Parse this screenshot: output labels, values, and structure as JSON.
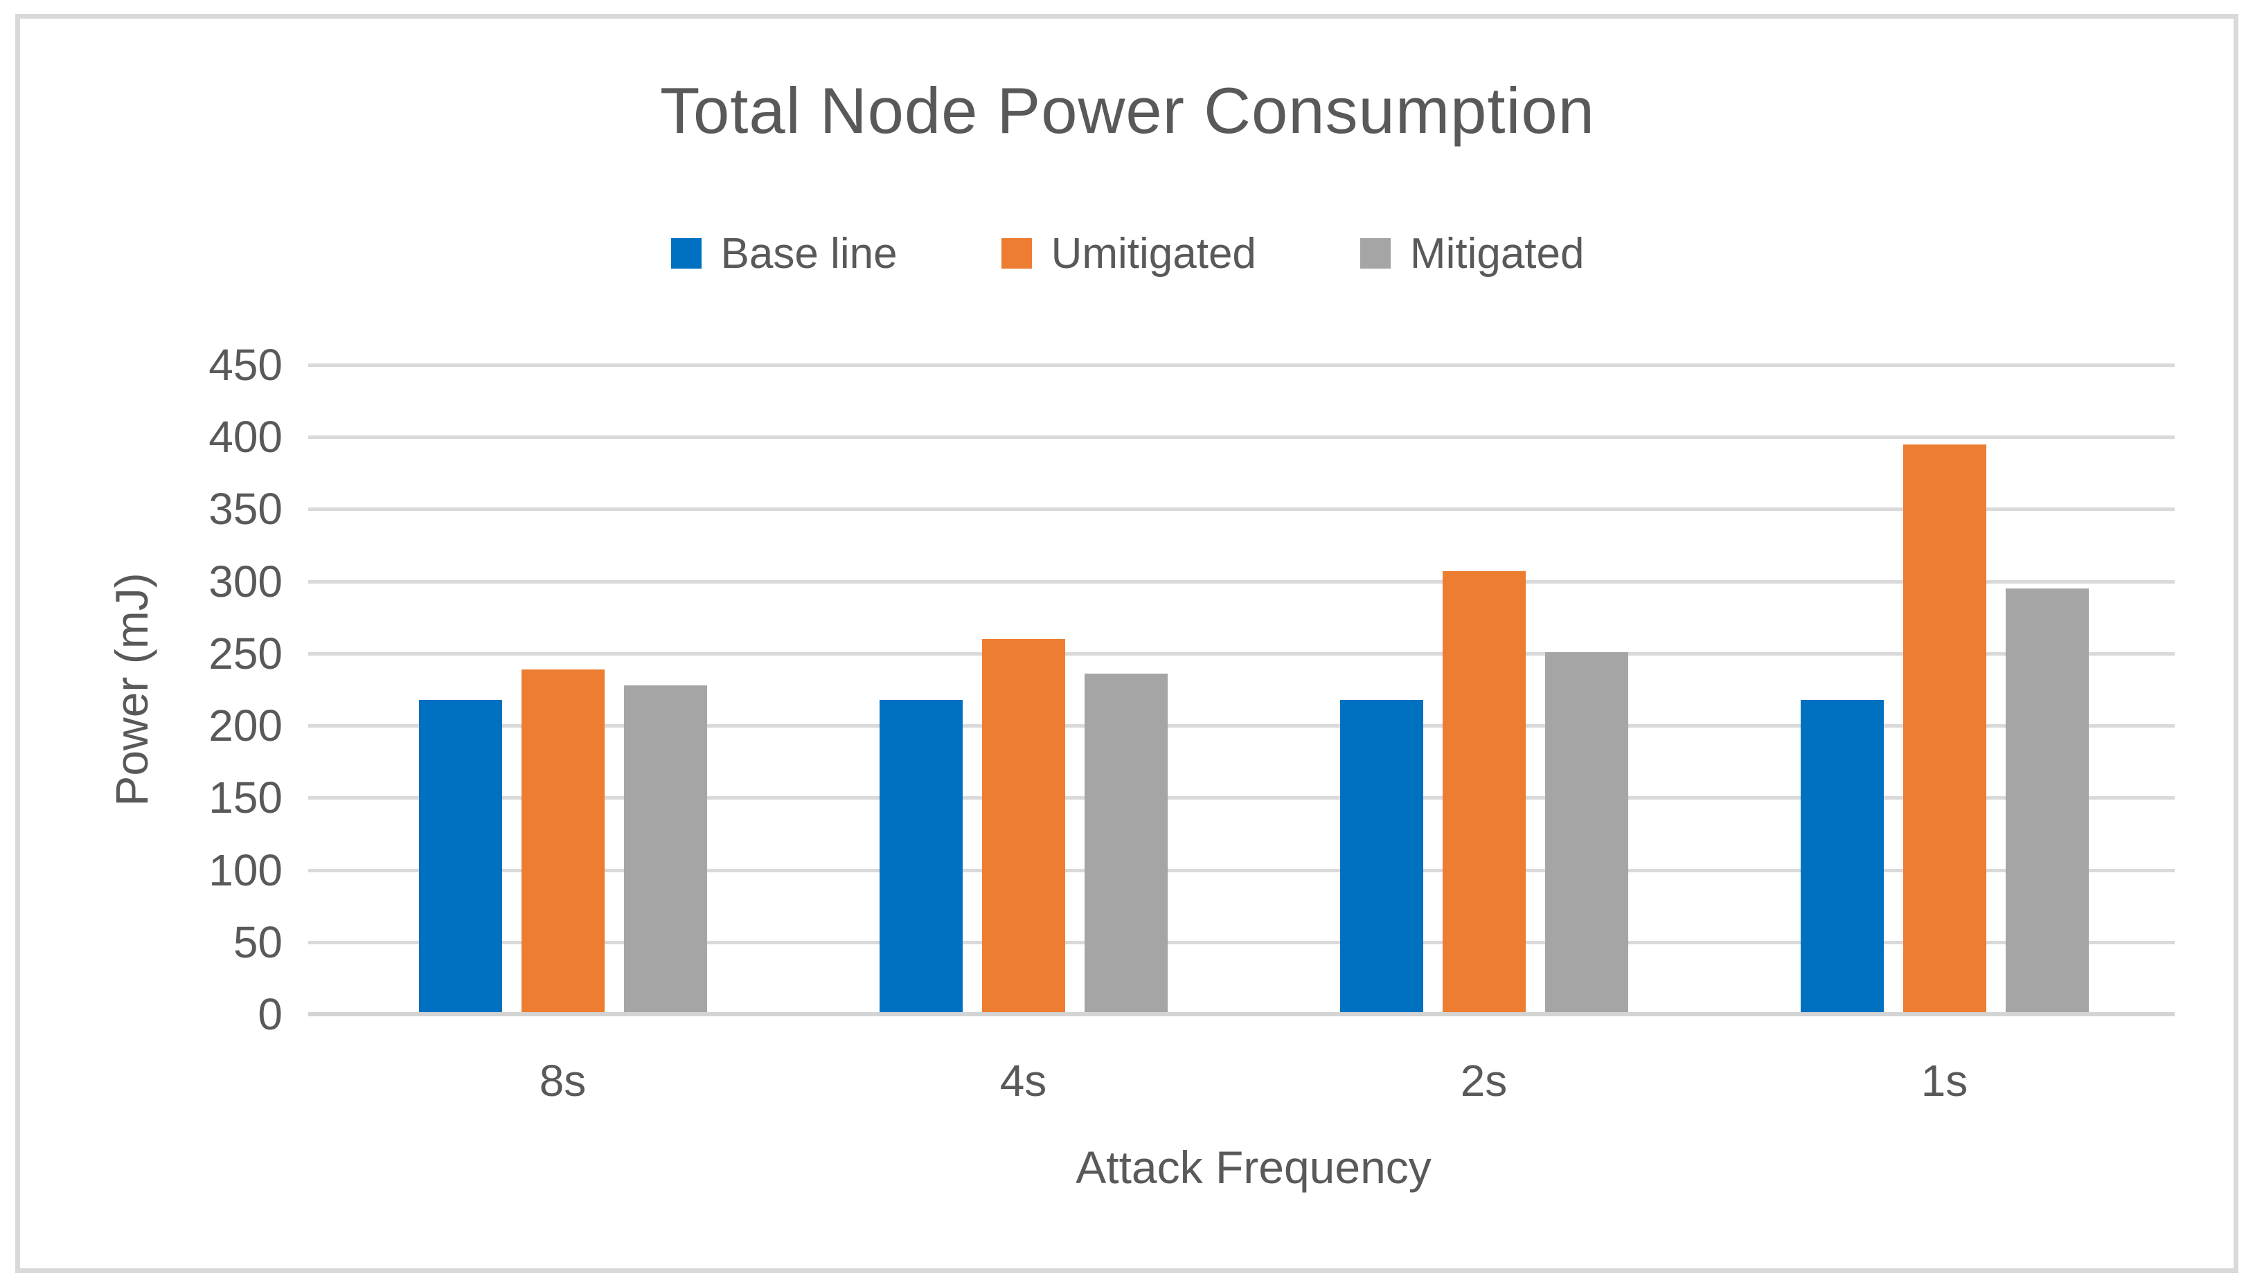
{
  "chart_data": {
    "type": "bar",
    "title": "Total Node Power Consumption",
    "categories": [
      "8s",
      "4s",
      "2s",
      "1s"
    ],
    "series": [
      {
        "name": "Base line",
        "color": "#0070C0",
        "values": [
          218,
          218,
          218,
          218
        ]
      },
      {
        "name": "Umitigated",
        "color": "#ED7D31",
        "values": [
          239,
          260,
          307,
          395
        ]
      },
      {
        "name": "Mitigated",
        "color": "#A5A5A5",
        "values": [
          228,
          236,
          251,
          295
        ]
      }
    ],
    "xlabel": "Attack Frequency",
    "ylabel": "Power (mJ)",
    "ylim": [
      0,
      450
    ],
    "yticks": [
      0,
      50,
      100,
      150,
      200,
      250,
      300,
      350,
      400,
      450
    ],
    "grid": true,
    "legend_position": "top"
  },
  "colors": {
    "text": "#595959",
    "gridline": "#D9D9D9",
    "axis_line": "#D4D4D4",
    "frame_border": "#D9D9D9",
    "background": "#FFFFFF"
  }
}
